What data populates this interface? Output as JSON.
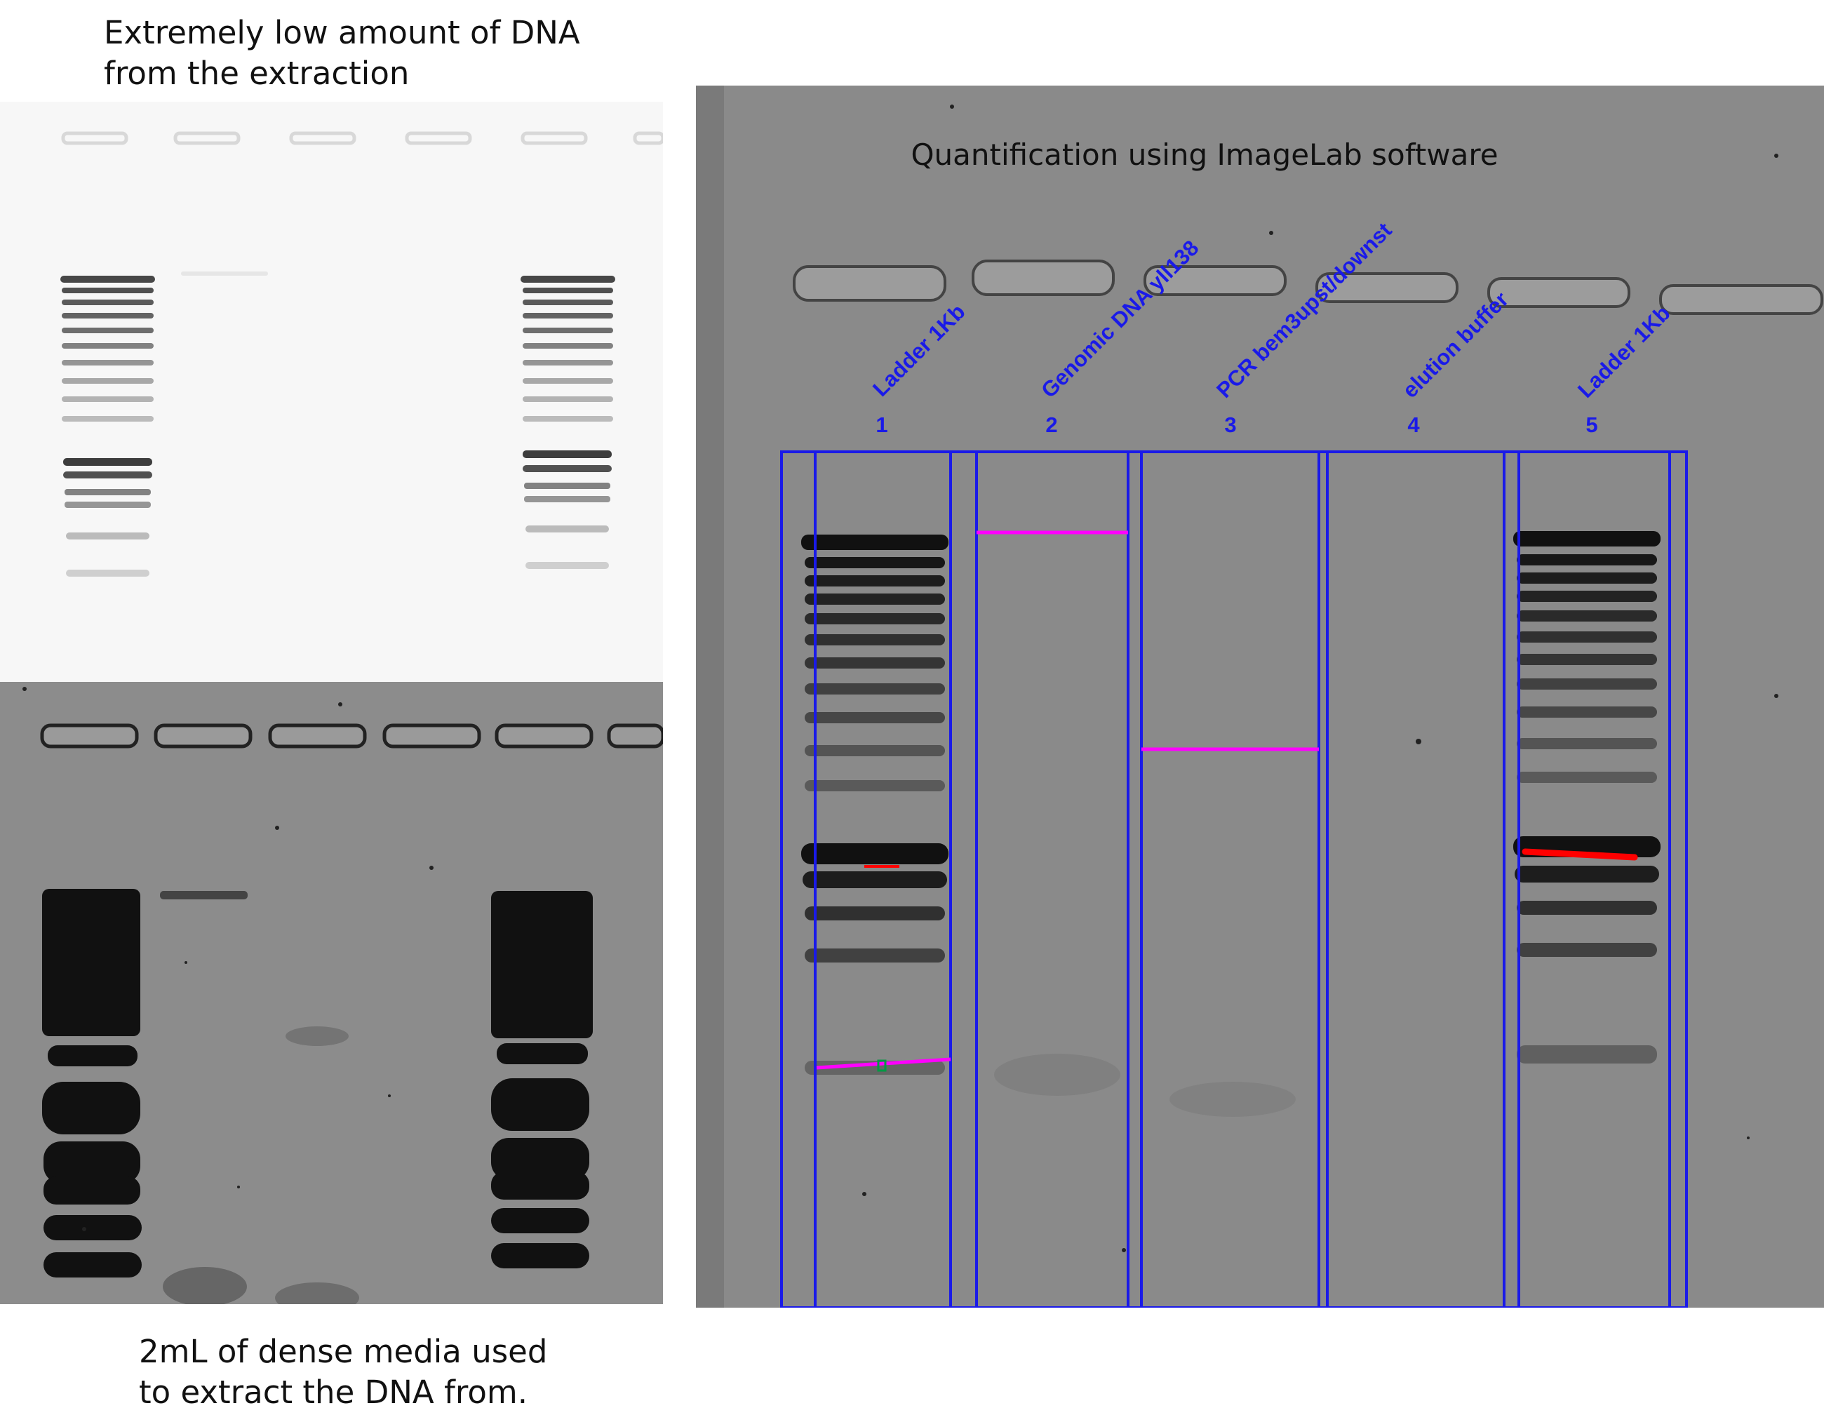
{
  "captions": {
    "top": "Extremely low amount of DNA\nfrom the extraction",
    "bottom": "2mL of dense media used\nto extract the DNA from."
  },
  "right_gel": {
    "title": "Quantification using ImageLab software",
    "lanes": [
      {
        "number": "1",
        "label": "Ladder 1Kb"
      },
      {
        "number": "2",
        "label": "Genomic DNA yll138"
      },
      {
        "number": "3",
        "label": "PCR bem3upst/downst"
      },
      {
        "number": "4",
        "label": "elution buffer"
      },
      {
        "number": "5",
        "label": "Ladder 1Kb"
      }
    ]
  },
  "colors": {
    "lane_frame": "#1a1ae8",
    "band_marker": "#ff00ff",
    "reference_band": "#ff0000",
    "marker_point": "#009944",
    "gel_light": "#f7f7f7",
    "gel_dark": "#8c8c8c",
    "gel_right": "#8a8a8a"
  }
}
